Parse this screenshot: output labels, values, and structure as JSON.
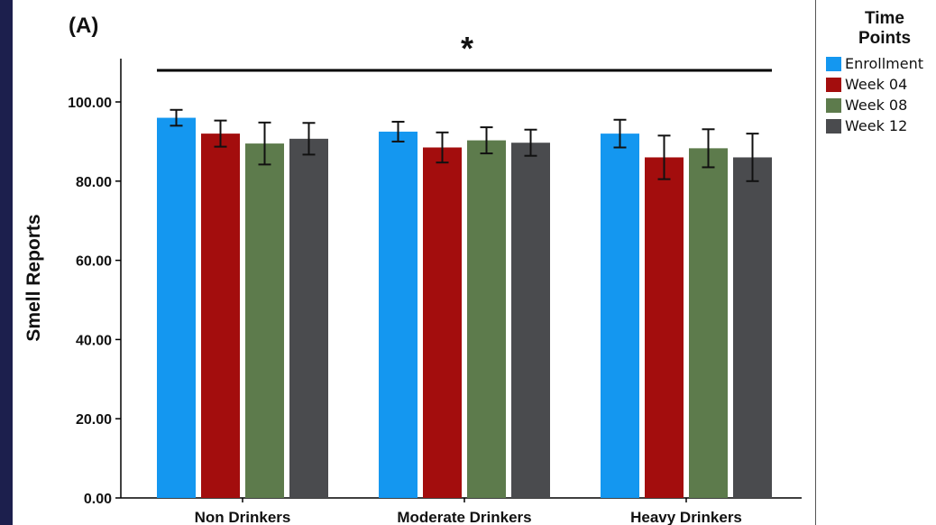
{
  "panel_label": "(A)",
  "significance_marker": "*",
  "legend": {
    "title_line1": "Time",
    "title_line2": "Points",
    "items": [
      {
        "label": "Enrollment",
        "color": "#1497f0"
      },
      {
        "label": "Week 04",
        "color": "#a30d0d"
      },
      {
        "label": "Week 08",
        "color": "#5d7b4c"
      },
      {
        "label": "Week 12",
        "color": "#4a4b4e"
      }
    ]
  },
  "chart_data": {
    "type": "bar",
    "title": "",
    "xlabel": "",
    "ylabel": "Smell Reports",
    "ylim": [
      0,
      100
    ],
    "yticks": [
      "0.00",
      "20.00",
      "40.00",
      "60.00",
      "80.00",
      "100.00"
    ],
    "categories": [
      "Non Drinkers",
      "Moderate Drinkers",
      "Heavy Drinkers"
    ],
    "series": [
      {
        "name": "Enrollment",
        "values": [
          96,
          92.5,
          92
        ],
        "error": [
          2,
          2.5,
          3.5
        ]
      },
      {
        "name": "Week 04",
        "values": [
          92,
          88.5,
          86
        ],
        "error": [
          3.3,
          3.8,
          5.5
        ]
      },
      {
        "name": "Week 08",
        "values": [
          89.5,
          90.3,
          88.3
        ],
        "error": [
          5.3,
          3.3,
          4.8
        ]
      },
      {
        "name": "Week 12",
        "values": [
          90.7,
          89.7,
          86
        ],
        "error": [
          4,
          3.3,
          6
        ]
      }
    ],
    "legend_position": "right",
    "grid": false
  }
}
